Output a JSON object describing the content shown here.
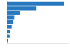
{
  "chart_data": {
    "type": "bar",
    "orientation": "horizontal",
    "categories": [
      null,
      null,
      null,
      null,
      null,
      null,
      null,
      null,
      null
    ],
    "values": [
      16267,
      8396,
      3571,
      2050,
      1730,
      1340,
      950,
      760,
      200
    ],
    "color": "#2878c0",
    "xlim": [
      0,
      17500
    ],
    "xticks": [],
    "grid": false,
    "tick_labels": false
  }
}
